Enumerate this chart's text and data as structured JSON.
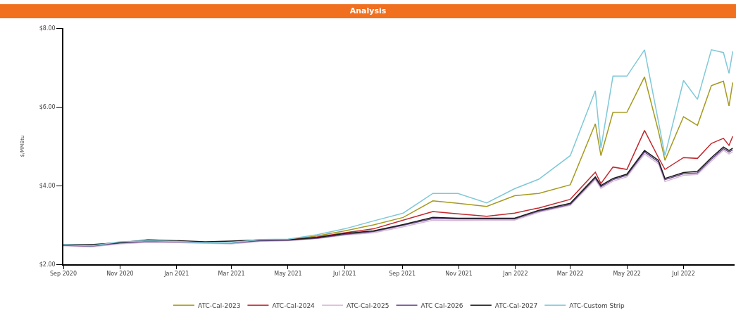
{
  "chart_data": {
    "type": "line",
    "title": "Analysis",
    "ylabel": "$/MMBtu",
    "x": [
      "2020-09-01",
      "2020-10-01",
      "2020-11-01",
      "2020-12-01",
      "2021-01-01",
      "2021-02-01",
      "2021-03-01",
      "2021-04-01",
      "2021-05-01",
      "2021-06-01",
      "2021-07-01",
      "2021-08-01",
      "2021-09-02",
      "2021-10-04",
      "2021-10-31",
      "2021-12-01",
      "2021-12-31",
      "2022-01-26",
      "2022-03-01",
      "2022-03-28",
      "2022-04-03",
      "2022-04-16",
      "2022-05-01",
      "2022-05-20",
      "2022-06-04",
      "2022-06-11",
      "2022-07-01",
      "2022-07-16",
      "2022-07-31",
      "2022-08-13",
      "2022-08-19",
      "2022-08-23"
    ],
    "series": [
      {
        "name": "ATC-Cal-2023",
        "color": "#a59a1e",
        "values": [
          null,
          null,
          null,
          null,
          null,
          null,
          null,
          null,
          2.63,
          2.72,
          2.85,
          3.0,
          3.19,
          3.61,
          3.55,
          3.47,
          3.74,
          3.8,
          4.02,
          5.57,
          4.76,
          5.86,
          5.86,
          6.76,
          5.38,
          4.64,
          5.75,
          5.53,
          6.54,
          6.65,
          6.02,
          6.62
        ]
      },
      {
        "name": "ATC-Cal-2024",
        "color": "#c0282e",
        "values": [
          null,
          null,
          null,
          null,
          null,
          null,
          null,
          null,
          2.62,
          2.69,
          2.8,
          2.9,
          3.12,
          3.34,
          3.28,
          3.22,
          3.3,
          3.43,
          3.65,
          4.34,
          4.05,
          4.47,
          4.41,
          5.4,
          4.71,
          4.41,
          4.71,
          4.69,
          5.07,
          5.2,
          5.02,
          5.25
        ]
      },
      {
        "name": "ATC-Cal-2025",
        "color": "#d8b8d8",
        "values": [
          2.47,
          2.44,
          2.52,
          2.56,
          2.55,
          2.53,
          2.52,
          2.58,
          2.6,
          2.65,
          2.74,
          2.8,
          2.95,
          3.12,
          3.11,
          3.12,
          3.12,
          3.32,
          3.5,
          4.15,
          3.93,
          4.11,
          4.22,
          4.8,
          4.55,
          4.1,
          4.26,
          4.28,
          4.62,
          4.9,
          4.8,
          4.86
        ]
      },
      {
        "name": "ATC Cal-2026",
        "color": "#6a4c8c",
        "values": [
          2.48,
          2.46,
          2.54,
          2.58,
          2.57,
          2.55,
          2.54,
          2.6,
          2.61,
          2.66,
          2.76,
          2.83,
          2.99,
          3.16,
          3.15,
          3.15,
          3.15,
          3.35,
          3.52,
          4.19,
          3.97,
          4.15,
          4.26,
          4.85,
          4.6,
          4.15,
          4.3,
          4.32,
          4.67,
          4.94,
          4.85,
          4.91
        ]
      },
      {
        "name": "ATC-Cal-2027",
        "color": "#1a1a1a",
        "values": [
          2.5,
          2.5,
          2.55,
          2.62,
          2.6,
          2.57,
          2.59,
          2.62,
          2.62,
          2.68,
          2.78,
          2.85,
          3.01,
          3.19,
          3.17,
          3.17,
          3.17,
          3.37,
          3.55,
          4.22,
          4.0,
          4.18,
          4.29,
          4.89,
          4.64,
          4.18,
          4.33,
          4.36,
          4.71,
          4.98,
          4.89,
          4.95
        ]
      },
      {
        "name": "ATC-Custom Strip",
        "color": "#7ec8d8",
        "values": [
          2.5,
          2.47,
          2.57,
          2.6,
          2.58,
          2.55,
          2.55,
          2.63,
          2.64,
          2.75,
          2.9,
          3.1,
          3.3,
          3.8,
          3.8,
          3.56,
          3.92,
          4.16,
          4.76,
          6.41,
          4.95,
          6.78,
          6.78,
          7.45,
          5.62,
          4.76,
          6.67,
          6.19,
          7.45,
          7.38,
          6.85,
          7.41
        ]
      }
    ],
    "xlim": [
      "2020-09-01",
      "2022-08-25"
    ],
    "xticks": [
      {
        "value": "2020-09-01",
        "label": "Sep 2020"
      },
      {
        "value": "2020-11-01",
        "label": "Nov 2020"
      },
      {
        "value": "2021-01-01",
        "label": "Jan 2021"
      },
      {
        "value": "2021-03-01",
        "label": "Mar 2021"
      },
      {
        "value": "2021-05-01",
        "label": "May 2021"
      },
      {
        "value": "2021-07-01",
        "label": "Jul 2021"
      },
      {
        "value": "2021-09-01",
        "label": "Sep 2021"
      },
      {
        "value": "2021-11-01",
        "label": "Nov 2021"
      },
      {
        "value": "2022-01-01",
        "label": "Jan 2022"
      },
      {
        "value": "2022-03-01",
        "label": "Mar 2022"
      },
      {
        "value": "2022-05-01",
        "label": "May 2022"
      },
      {
        "value": "2022-07-01",
        "label": "Jul 2022"
      }
    ],
    "ylim": [
      2,
      8
    ],
    "yticks": [
      {
        "value": 2,
        "label": "$2.00"
      },
      {
        "value": 4,
        "label": "$4.00"
      },
      {
        "value": 6,
        "label": "$6.00"
      },
      {
        "value": 8,
        "label": "$8.00"
      }
    ],
    "grid": false,
    "legend": "bottom",
    "marker": "none",
    "line_style": "solid"
  }
}
